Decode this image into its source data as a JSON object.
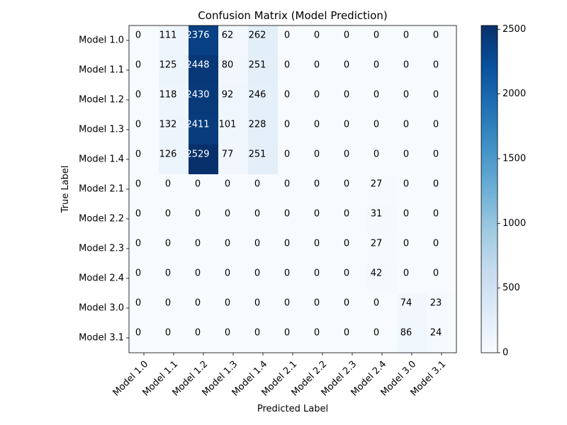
{
  "chart_data": {
    "type": "heatmap",
    "title": "Confusion Matrix (Model Prediction)",
    "xlabel": "Predicted Label",
    "ylabel": "True Label",
    "labels": [
      "Model 1.0",
      "Model 1.1",
      "Model 1.2",
      "Model 1.3",
      "Model 1.4",
      "Model 2.1",
      "Model 2.2",
      "Model 2.3",
      "Model 2.4",
      "Model 3.0",
      "Model 3.1"
    ],
    "matrix": [
      [
        0,
        111,
        2376,
        62,
        262,
        0,
        0,
        0,
        0,
        0,
        0
      ],
      [
        0,
        125,
        2448,
        80,
        251,
        0,
        0,
        0,
        0,
        0,
        0
      ],
      [
        0,
        118,
        2430,
        92,
        246,
        0,
        0,
        0,
        0,
        0,
        0
      ],
      [
        0,
        132,
        2411,
        101,
        228,
        0,
        0,
        0,
        0,
        0,
        0
      ],
      [
        0,
        126,
        2529,
        77,
        251,
        0,
        0,
        0,
        0,
        0,
        0
      ],
      [
        0,
        0,
        0,
        0,
        0,
        0,
        0,
        0,
        27,
        0,
        0
      ],
      [
        0,
        0,
        0,
        0,
        0,
        0,
        0,
        0,
        31,
        0,
        0
      ],
      [
        0,
        0,
        0,
        0,
        0,
        0,
        0,
        0,
        27,
        0,
        0
      ],
      [
        0,
        0,
        0,
        0,
        0,
        0,
        0,
        0,
        42,
        0,
        0
      ],
      [
        0,
        0,
        0,
        0,
        0,
        0,
        0,
        0,
        0,
        74,
        23
      ],
      [
        0,
        0,
        0,
        0,
        0,
        0,
        0,
        0,
        0,
        86,
        24
      ]
    ],
    "colormap": "Blues",
    "vmin": 0,
    "vmax": 2529,
    "colorbar_ticks": [
      0,
      500,
      1000,
      1500,
      2000,
      2500
    ],
    "grid": false
  }
}
